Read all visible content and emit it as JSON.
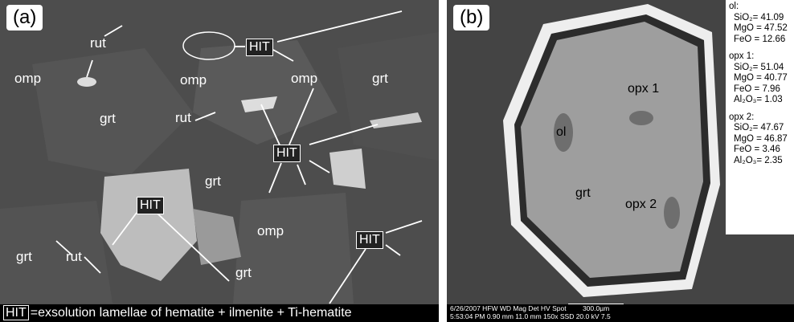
{
  "panel_a": {
    "tag": "(a)",
    "labels": [
      {
        "text": "rut"
      },
      {
        "text": "rut"
      },
      {
        "text": "rut"
      },
      {
        "text": "omp"
      },
      {
        "text": "omp"
      },
      {
        "text": "omp"
      },
      {
        "text": "omp"
      },
      {
        "text": "grt"
      },
      {
        "text": "grt"
      },
      {
        "text": "grt"
      },
      {
        "text": "grt"
      },
      {
        "text": "grt"
      }
    ],
    "hit_boxes": [
      "HIT",
      "HIT",
      "HIT",
      "HIT"
    ],
    "legend": {
      "key": "HIT",
      "text": "=exsolution lamellae of hematite + ilmenite + Ti-hematite"
    }
  },
  "panel_b": {
    "tag": "(b)",
    "labels": [
      "ol",
      "opx 1",
      "grt",
      "opx 2"
    ],
    "compositions": [
      {
        "name": "ol:",
        "lines": [
          "SiO₂= 41.09",
          "MgO = 47.52",
          "FeO = 12.66"
        ]
      },
      {
        "name": "opx 1:",
        "lines": [
          "SiO₂= 51.04",
          "MgO = 40.77",
          "FeO = 7.96",
          "Al₂O₃= 1.03"
        ]
      },
      {
        "name": "opx 2:",
        "lines": [
          "SiO₂= 47.67",
          "MgO = 46.87",
          "FeO = 3.46",
          "Al₂O₃= 2.35"
        ]
      }
    ],
    "databar": [
      "6/26/2007   HFW    WD    Mag   Det    HV    Spot",
      "300.0µm",
      "5:53:04 PM 0.90 mm  11.0 mm  150x  SSD  20.0 kV  7.5"
    ]
  }
}
